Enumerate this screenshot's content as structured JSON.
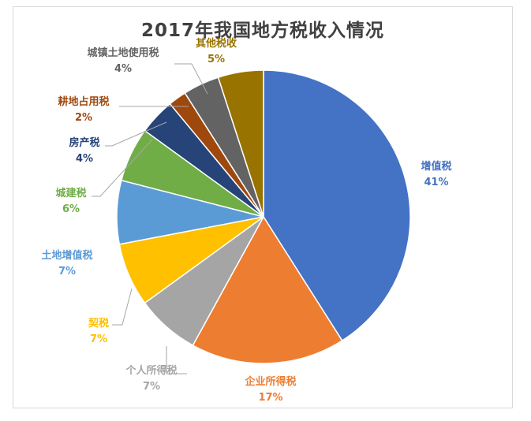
{
  "chart_data": {
    "type": "pie",
    "title": "2017年我国地方税收入情况",
    "slices": [
      {
        "label": "增值税",
        "value": 41,
        "display": "41%",
        "color": "#4472c4"
      },
      {
        "label": "企业所得税",
        "value": 17,
        "display": "17%",
        "color": "#ed7d31"
      },
      {
        "label": "个人所得税",
        "value": 7,
        "display": "7%",
        "color": "#a5a5a5"
      },
      {
        "label": "契税",
        "value": 7,
        "display": "7%",
        "color": "#ffc000"
      },
      {
        "label": "土地增值税",
        "value": 7,
        "display": "7%",
        "color": "#5b9bd5"
      },
      {
        "label": "城建税",
        "value": 6,
        "display": "6%",
        "color": "#70ad47"
      },
      {
        "label": "房产税",
        "value": 4,
        "display": "4%",
        "color": "#264478"
      },
      {
        "label": "耕地占用税",
        "value": 2,
        "display": "2%",
        "color": "#9e480e"
      },
      {
        "label": "城镇土地使用税",
        "value": 4,
        "display": "4%",
        "color": "#636363"
      },
      {
        "label": "其他税收",
        "value": 5,
        "display": "5%",
        "color": "#997300"
      }
    ],
    "start_angle": "12 o'clock",
    "direction": "clockwise",
    "legend": "none"
  }
}
